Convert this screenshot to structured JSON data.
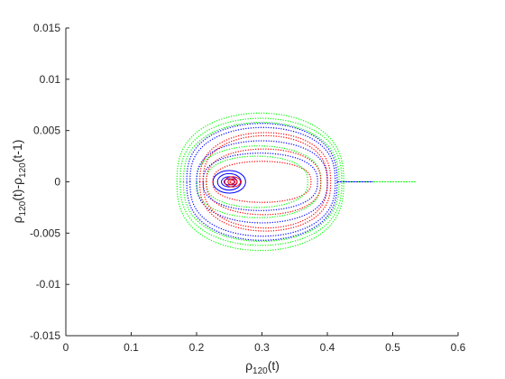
{
  "chart_data": {
    "type": "scatter",
    "title": "",
    "xlabel": {
      "base": "ρ",
      "sub": "120",
      "tail": "(t)"
    },
    "ylabel": {
      "base": "ρ",
      "sub": "120",
      "mid": "(t)-ρ",
      "sub2": "120",
      "tail": "(t-1)"
    },
    "xlim": [
      0,
      0.6
    ],
    "ylim": [
      -0.015,
      0.015
    ],
    "xticks": [
      0,
      0.1,
      0.2,
      0.3,
      0.4,
      0.5,
      0.6
    ],
    "xtick_labels": [
      "0",
      "0.1",
      "0.2",
      "0.3",
      "0.4",
      "0.5",
      "0.6"
    ],
    "yticks": [
      -0.015,
      -0.01,
      -0.005,
      0,
      0.005,
      0.01,
      0.015
    ],
    "ytick_labels": [
      "-0.015",
      "-0.01",
      "-0.005",
      "0",
      "0.005",
      "0.01",
      "0.015"
    ],
    "grid": false,
    "legend": "none",
    "series": [
      {
        "color": "#00ff00",
        "style": "dotted",
        "orbits": [
          {
            "cx": 0.3,
            "cy": 0.0,
            "x_min": 0.17,
            "x_max": 0.425,
            "amp": 0.0067
          },
          {
            "cx": 0.3,
            "cy": 0.0,
            "x_min": 0.175,
            "x_max": 0.422,
            "amp": 0.0062
          },
          {
            "cx": 0.3,
            "cy": 0.0,
            "x_min": 0.18,
            "x_max": 0.418,
            "amp": 0.0058
          },
          {
            "cx": 0.295,
            "cy": 0.0,
            "x_min": 0.2,
            "x_max": 0.39,
            "amp": 0.0035
          },
          {
            "cx": 0.3,
            "cy": 0.0,
            "x_min": 0.215,
            "x_max": 0.37,
            "amp": 0.0025
          }
        ],
        "tail": {
          "x_start": 0.425,
          "x_end": 0.535,
          "y": 0.0
        }
      },
      {
        "color": "#0000ff",
        "style": "dotted",
        "orbits": [
          {
            "cx": 0.3,
            "cy": 0.0,
            "x_min": 0.185,
            "x_max": 0.415,
            "amp": 0.0057
          },
          {
            "cx": 0.3,
            "cy": 0.0,
            "x_min": 0.19,
            "x_max": 0.412,
            "amp": 0.0053
          },
          {
            "cx": 0.3,
            "cy": 0.0,
            "x_min": 0.2,
            "x_max": 0.4,
            "amp": 0.004
          },
          {
            "cx": 0.295,
            "cy": 0.0,
            "x_min": 0.21,
            "x_max": 0.385,
            "amp": 0.0028
          }
        ],
        "spiral": {
          "cx": 0.25,
          "cy": 0.0,
          "rx": [
            0.025,
            0.018,
            0.012,
            0.008
          ],
          "ry": [
            0.0011,
            0.0008,
            0.0005,
            0.0003
          ]
        },
        "tail": {
          "x_start": 0.415,
          "x_end": 0.47,
          "y": 0.0
        }
      },
      {
        "color": "#ff0000",
        "style": "dotted",
        "orbits": [
          {
            "cx": 0.3,
            "cy": 0.0,
            "x_min": 0.205,
            "x_max": 0.405,
            "amp": 0.0048
          },
          {
            "cx": 0.3,
            "cy": 0.0,
            "x_min": 0.21,
            "x_max": 0.4,
            "amp": 0.0045
          },
          {
            "cx": 0.295,
            "cy": 0.0,
            "x_min": 0.215,
            "x_max": 0.39,
            "amp": 0.0032
          },
          {
            "cx": 0.29,
            "cy": 0.0,
            "x_min": 0.225,
            "x_max": 0.375,
            "amp": 0.002
          }
        ],
        "spiral": {
          "cx": 0.255,
          "cy": 0.0,
          "rx": [
            0.012,
            0.007,
            0.004
          ],
          "ry": [
            0.0005,
            0.0003,
            0.00015
          ]
        }
      }
    ]
  }
}
